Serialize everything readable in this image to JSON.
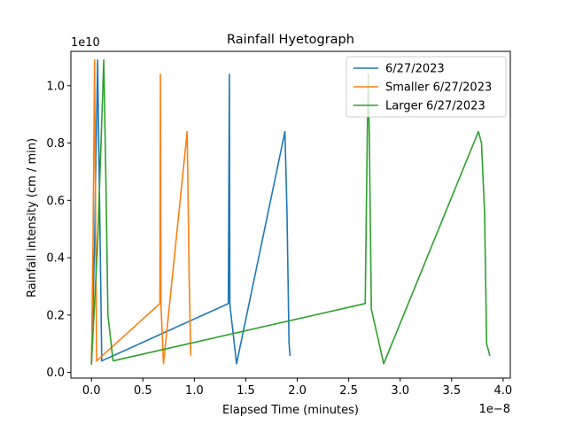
{
  "chart_data": {
    "type": "line",
    "title": "Rainfall Hyetograph",
    "xlabel": "Elapsed Time (minutes)",
    "ylabel": "Rainfall intensity (cm / min)",
    "x_offset_text": "1e−8",
    "y_offset_text": "1e10",
    "x_scale": 1e-08,
    "y_scale": 10000000000.0,
    "xlim": [
      -2e-09,
      4.07e-08
    ],
    "ylim": [
      -200000000.0,
      11200000000.0
    ],
    "x_ticks": [
      0,
      5e-09,
      1e-08,
      1.5e-08,
      2e-08,
      2.5e-08,
      3e-08,
      3.5e-08,
      4e-08
    ],
    "x_tick_labels": [
      "0.0",
      "0.5",
      "1.0",
      "1.5",
      "2.0",
      "2.5",
      "3.0",
      "3.5",
      "4.0"
    ],
    "y_ticks": [
      0,
      2000000000.0,
      4000000000.0,
      6000000000.0,
      8000000000.0,
      10000000000.0
    ],
    "y_tick_labels": [
      "0.0",
      "0.2",
      "0.4",
      "0.6",
      "0.8",
      "1.0"
    ],
    "grid": false,
    "legend_position": "top-right",
    "series": [
      {
        "name": "6/27/2023",
        "color": "#1f77b4",
        "x": [
          0.0,
          3e-10,
          6e-10,
          1e-09,
          1.33e-08,
          1.34e-08,
          1.345e-08,
          1.35e-08,
          1.41e-08,
          1.88e-08,
          1.9e-08,
          1.92e-08,
          1.93e-08
        ],
        "y": [
          300000000.0,
          4500000000.0,
          10900000000.0,
          400000000.0,
          2400000000.0,
          10400000000.0,
          2400000000.0,
          2200000000.0,
          300000000.0,
          8400000000.0,
          5600000000.0,
          1000000000.0,
          600000000.0
        ]
      },
      {
        "name": "Smaller 6/27/2023",
        "color": "#ff7f0e",
        "x": [
          0.0,
          1.5e-10,
          3e-10,
          5e-10,
          6.65e-09,
          6.7e-09,
          6.75e-09,
          7e-09,
          9.3e-09,
          9.5e-09,
          9.65e-09
        ],
        "y": [
          300000000.0,
          4500000000.0,
          10900000000.0,
          400000000.0,
          2400000000.0,
          10400000000.0,
          2400000000.0,
          300000000.0,
          8400000000.0,
          3200000000.0,
          600000000.0
        ],
        "pre_x": [
          7.5e-09
        ],
        "pre_y": [
          2100000000.0
        ]
      },
      {
        "name": "Larger 6/27/2023",
        "color": "#2ca02c",
        "x": [
          0.0,
          6e-10,
          1.2e-09,
          1.4e-09,
          1.6e-09,
          2.1e-09,
          2.66e-08,
          2.68e-08,
          2.69e-08,
          2.7e-08,
          2.72e-08,
          2.84e-08,
          3.76e-08,
          3.79e-08,
          3.82e-08,
          3.84e-08,
          3.87e-08
        ],
        "y": [
          300000000.0,
          4500000000.0,
          10900000000.0,
          6800000000.0,
          2000000000.0,
          400000000.0,
          2400000000.0,
          8200000000.0,
          10400000000.0,
          8200000000.0,
          2200000000.0,
          300000000.0,
          8400000000.0,
          8000000000.0,
          5600000000.0,
          1000000000.0,
          600000000.0
        ]
      }
    ]
  }
}
